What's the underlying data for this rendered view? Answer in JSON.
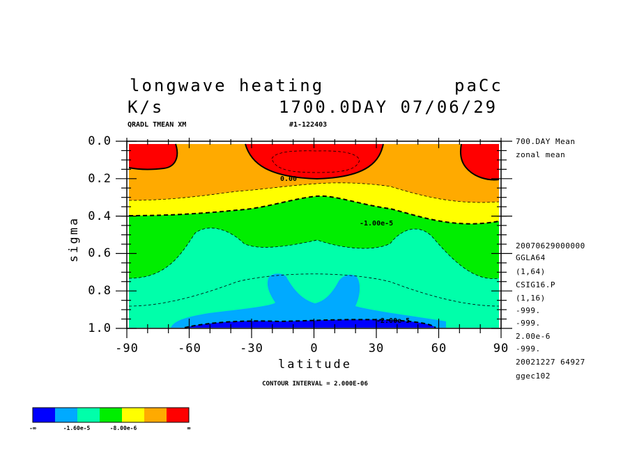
{
  "header": {
    "title": "longwave heating",
    "model_code": "paCc",
    "units": "K/s",
    "time_info": "1700.0DAY 07/06/29",
    "variable_label": "QRADL TMEAN XM",
    "run_id": "#1-122403"
  },
  "side_info": {
    "top": [
      "700.DAY Mean",
      "zonal mean"
    ],
    "bottom": [
      "20070629000000",
      "GGLA64",
      "(1,64)",
      "CSIG16.P",
      "(1,16)",
      "-999.",
      "-999.",
      "2.00e-6",
      "-999.",
      "20021227  64927",
      "ggec102"
    ]
  },
  "footer": {
    "contour_interval": "CONTOUR INTERVAL = 2.000E-06"
  },
  "chart_data": {
    "type": "heatmap",
    "title": "longwave heating",
    "xlabel": "latitude",
    "ylabel": "sigma",
    "xlim": [
      -90,
      90
    ],
    "ylim": [
      1.0,
      0.0
    ],
    "x_ticks": [
      -90,
      -60,
      -30,
      0,
      30,
      60,
      90
    ],
    "x_tick_labels": [
      "-90",
      "-60",
      "-30",
      "0",
      "30",
      "60",
      "90"
    ],
    "y_ticks": [
      0.0,
      0.2,
      0.4,
      0.6,
      0.8,
      1.0
    ],
    "y_tick_labels": [
      "0.0",
      "0.2",
      "0.4",
      "0.6",
      "0.8",
      "1.0"
    ],
    "contour_interval": 2e-06,
    "contour_labels": [
      {
        "text": "0.00",
        "x": -11,
        "sigma": 0.2
      },
      {
        "text": "-1.00e-5",
        "x": 31,
        "sigma": 0.44
      },
      {
        "text": "-2.00e-5",
        "x": 40,
        "sigma": 0.97
      }
    ],
    "colors": [
      "#0000ff",
      "#00aaff",
      "#00ffaa",
      "#00ee00",
      "#ffff00",
      "#ffaa00",
      "#ff0000"
    ],
    "color_levels": [
      "-∞",
      "-1.60e-5",
      "-8.00e-6",
      "∞"
    ],
    "legend": "bottom-left"
  }
}
